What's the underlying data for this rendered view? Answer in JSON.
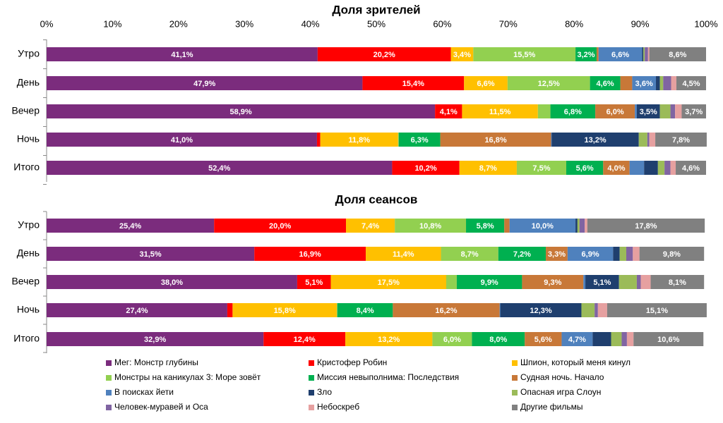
{
  "chart_data": [
    {
      "type": "bar",
      "orientation": "horizontal",
      "stacked": true,
      "title": "Доля зрителей",
      "categories": [
        "Утро",
        "День",
        "Вечер",
        "Ночь",
        "Итого"
      ],
      "xlim": [
        0,
        100
      ],
      "xticks": [
        {
          "value": 0,
          "label": "0%"
        },
        {
          "value": 10,
          "label": "10%"
        },
        {
          "value": 20,
          "label": "20%"
        },
        {
          "value": 30,
          "label": "30%"
        },
        {
          "value": 40,
          "label": "40%"
        },
        {
          "value": 50,
          "label": "50%"
        },
        {
          "value": 60,
          "label": "60%"
        },
        {
          "value": 70,
          "label": "70%"
        },
        {
          "value": 80,
          "label": "80%"
        },
        {
          "value": 90,
          "label": "90%"
        },
        {
          "value": 100,
          "label": "100%"
        }
      ],
      "series": [
        {
          "color": "#7b2c7d",
          "values": [
            41.1,
            47.9,
            58.9,
            41.0,
            52.4
          ],
          "value_labels": [
            "41,1%",
            "47,9%",
            "58,9%",
            "41,0%",
            "52,4%"
          ]
        },
        {
          "color": "#ff0000",
          "values": [
            20.2,
            15.4,
            4.1,
            0.5,
            10.2
          ],
          "value_labels": [
            "20,2%",
            "15,4%",
            "4,1%",
            null,
            "10,2%"
          ]
        },
        {
          "color": "#ffc000",
          "values": [
            3.4,
            6.6,
            11.5,
            11.8,
            8.7
          ],
          "value_labels": [
            "3,4%",
            "6,6%",
            "11,5%",
            "11,8%",
            "8,7%"
          ]
        },
        {
          "color": "#92d050",
          "values": [
            15.5,
            12.5,
            1.9,
            0.1,
            7.5
          ],
          "value_labels": [
            "15,5%",
            "12,5%",
            null,
            null,
            "7,5%"
          ]
        },
        {
          "color": "#00b050",
          "values": [
            3.2,
            4.6,
            6.8,
            6.3,
            5.6
          ],
          "value_labels": [
            "3,2%",
            "4,6%",
            "6,8%",
            "6,3%",
            "5,6%"
          ]
        },
        {
          "color": "#c87838",
          "values": [
            0.3,
            1.8,
            6.0,
            16.8,
            4.0
          ],
          "value_labels": [
            null,
            null,
            "6,0%",
            "16,8%",
            "4,0%"
          ]
        },
        {
          "color": "#4f81bd",
          "values": [
            6.6,
            3.6,
            0.3,
            0.1,
            2.2
          ],
          "value_labels": [
            "6,6%",
            "3,6%",
            null,
            null,
            null
          ]
        },
        {
          "color": "#1f3f6e",
          "values": [
            0.2,
            0.6,
            3.5,
            13.2,
            2.1
          ],
          "value_labels": [
            null,
            null,
            "3,5%",
            "13,2%",
            null
          ]
        },
        {
          "color": "#9bbb59",
          "values": [
            0.2,
            0.5,
            1.6,
            1.3,
            1.0
          ],
          "value_labels": [
            null,
            null,
            null,
            null,
            null
          ]
        },
        {
          "color": "#8064a2",
          "values": [
            0.5,
            1.2,
            0.7,
            0.3,
            0.9
          ],
          "value_labels": [
            null,
            null,
            null,
            null,
            null
          ]
        },
        {
          "color": "#e6a0a0",
          "values": [
            0.2,
            0.8,
            1.0,
            0.9,
            0.8
          ],
          "value_labels": [
            null,
            null,
            null,
            null,
            null
          ]
        },
        {
          "color": "#808080",
          "values": [
            8.6,
            4.5,
            3.7,
            7.8,
            4.6
          ],
          "value_labels": [
            "8,6%",
            "4,5%",
            "3,7%",
            "7,8%",
            "4,6%"
          ]
        }
      ]
    },
    {
      "type": "bar",
      "orientation": "horizontal",
      "stacked": true,
      "title": "Доля сеансов",
      "categories": [
        "Утро",
        "День",
        "Вечер",
        "Ночь",
        "Итого"
      ],
      "xlim": [
        0,
        100
      ],
      "series": [
        {
          "name": "Мег: Монстр глубины",
          "color": "#7b2c7d",
          "values": [
            25.4,
            31.5,
            38.0,
            27.4,
            32.9
          ],
          "value_labels": [
            "25,4%",
            "31,5%",
            "38,0%",
            "27,4%",
            "32,9%"
          ]
        },
        {
          "name": "Кристофер Робин",
          "color": "#ff0000",
          "values": [
            20.0,
            16.9,
            5.1,
            0.8,
            12.4
          ],
          "value_labels": [
            "20,0%",
            "16,9%",
            "5,1%",
            null,
            "12,4%"
          ]
        },
        {
          "name": "Шпион, который меня кинул",
          "color": "#ffc000",
          "values": [
            7.4,
            11.4,
            17.5,
            15.8,
            13.2
          ],
          "value_labels": [
            "7,4%",
            "11,4%",
            "17,5%",
            "15,8%",
            "13,2%"
          ]
        },
        {
          "name": "Монстры на каникулах 3: Море зовёт",
          "color": "#92d050",
          "values": [
            10.8,
            8.7,
            1.6,
            0.1,
            6.0
          ],
          "value_labels": [
            "10,8%",
            "8,7%",
            null,
            null,
            "6,0%"
          ]
        },
        {
          "name": "Миссия невыполнима: Последствия",
          "color": "#00b050",
          "values": [
            5.8,
            7.2,
            9.9,
            8.4,
            8.0
          ],
          "value_labels": [
            "5,8%",
            "7,2%",
            "9,9%",
            "8,4%",
            "8,0%"
          ]
        },
        {
          "name": "Судная ночь. Начало",
          "color": "#c87838",
          "values": [
            0.8,
            3.3,
            9.3,
            16.2,
            5.6
          ],
          "value_labels": [
            null,
            "3,3%",
            "9,3%",
            "16,2%",
            "5,6%"
          ]
        },
        {
          "name": "В поисках йети",
          "color": "#4f81bd",
          "values": [
            10.0,
            6.9,
            0.3,
            0.1,
            4.7
          ],
          "value_labels": [
            "10,0%",
            "6,9%",
            null,
            null,
            "4,7%"
          ]
        },
        {
          "name": "Зло",
          "color": "#1f3f6e",
          "values": [
            0.3,
            1.0,
            5.1,
            12.3,
            2.8
          ],
          "value_labels": [
            null,
            null,
            "5,1%",
            "12,3%",
            null
          ]
        },
        {
          "name": "Опасная игра Слоун",
          "color": "#9bbb59",
          "values": [
            0.3,
            1.0,
            2.7,
            2.0,
            1.6
          ],
          "value_labels": [
            null,
            null,
            null,
            null,
            null
          ]
        },
        {
          "name": "Человек-муравей и Оса",
          "color": "#8064a2",
          "values": [
            0.8,
            1.0,
            0.6,
            0.5,
            0.8
          ],
          "value_labels": [
            null,
            null,
            null,
            null,
            null
          ]
        },
        {
          "name": "Небоскреб",
          "color": "#e6a0a0",
          "values": [
            0.4,
            1.0,
            1.5,
            1.4,
            1.0
          ],
          "value_labels": [
            null,
            null,
            null,
            null,
            null
          ]
        },
        {
          "name": "Другие фильмы",
          "color": "#808080",
          "values": [
            17.8,
            9.8,
            8.1,
            15.1,
            10.6
          ],
          "value_labels": [
            "17,8%",
            "9,8%",
            "8,1%",
            "15,1%",
            "10,6%"
          ]
        }
      ]
    }
  ]
}
